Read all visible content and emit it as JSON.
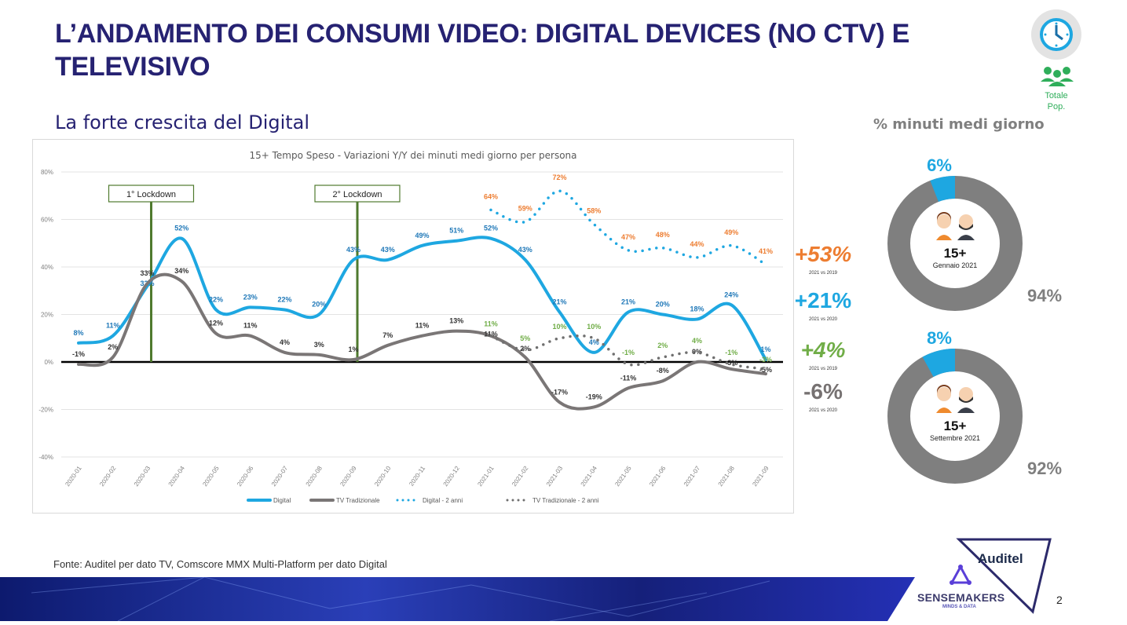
{
  "header": {
    "title": "L’ANDAMENTO DEI CONSUMI VIDEO: DIGITAL DEVICES (NO CTV) E TELEVISIVO",
    "subtitle": "La forte crescita del Digital",
    "population_icon": "people-group-icon",
    "clock_icon": "clock-icon",
    "population_label_1": "Totale",
    "population_label_2": "Pop."
  },
  "colors": {
    "digital": "#1ea7e1",
    "tv": "#7a7676",
    "digital_2y_label": "#ed7d31",
    "tv_2y_label": "#70ad47",
    "lockdown": "#4f7a2e",
    "title": "#262272"
  },
  "chart_data": {
    "type": "line",
    "title": "15+ Tempo Speso - Variazioni Y/Y dei minuti medi giorno per persona",
    "ylim": [
      -40,
      80
    ],
    "yticks": [
      "80%",
      "60%",
      "40%",
      "20%",
      "0%",
      "-20%",
      "-40%"
    ],
    "ytick_values": [
      80,
      60,
      40,
      20,
      0,
      -20,
      -40
    ],
    "grid": true,
    "legend_position": "bottom",
    "categories": [
      "2020-01",
      "2020-02",
      "2020-03",
      "2020-04",
      "2020-05",
      "2020-06",
      "2020-07",
      "2020-08",
      "2020-09",
      "2020-10",
      "2020-11",
      "2020-12",
      "2021-01",
      "2021-02",
      "2021-03",
      "2021-04",
      "2021-05",
      "2021-06",
      "2021-07",
      "2021-08",
      "2021-09"
    ],
    "series": [
      {
        "name": "Digital",
        "style": "solid",
        "values": [
          8,
          11,
          32,
          52,
          22,
          23,
          22,
          20,
          43,
          43,
          49,
          51,
          52,
          43,
          21,
          4,
          21,
          20,
          18,
          24,
          1
        ]
      },
      {
        "name": "TV Tradizionale",
        "style": "solid",
        "values": [
          -1,
          2,
          33,
          34,
          12,
          11,
          4,
          3,
          1,
          7,
          11,
          13,
          11,
          2,
          -17,
          -19,
          -11,
          -8,
          0,
          -3,
          -5
        ]
      },
      {
        "name": "Digital - 2 anni",
        "style": "dotted",
        "values": [
          null,
          null,
          null,
          null,
          null,
          null,
          null,
          null,
          null,
          null,
          null,
          null,
          64,
          59,
          72,
          58,
          47,
          48,
          44,
          49,
          41
        ]
      },
      {
        "name": "TV Tradizionale - 2 anni",
        "style": "dotted",
        "values": [
          null,
          null,
          null,
          null,
          null,
          null,
          null,
          null,
          null,
          null,
          null,
          null,
          11,
          5,
          10,
          10,
          -1,
          2,
          4,
          -1,
          -3
        ]
      }
    ],
    "annotations": [
      {
        "label": "1° Lockdown",
        "category": "2020-03"
      },
      {
        "label": "2° Lockdown",
        "category": "2020-09"
      }
    ],
    "summary": [
      {
        "value": "+53%",
        "note": "2021 vs 2019",
        "color": "#ed7d31"
      },
      {
        "value": "+21%",
        "note": "2021 vs 2020",
        "color": "#1ea7e1"
      },
      {
        "value": "+4%",
        "note": "2021 vs 2019",
        "color": "#70ad47"
      },
      {
        "value": "-6%",
        "note": "2021 vs 2020",
        "color": "#767171"
      }
    ]
  },
  "donuts": {
    "title": "% minuti medi giorno",
    "items": [
      {
        "digital": 6,
        "tv": 94,
        "digital_label": "6%",
        "tv_label": "94%",
        "age": "15+",
        "period": "Gennaio 2021"
      },
      {
        "digital": 8,
        "tv": 92,
        "digital_label": "8%",
        "tv_label": "92%",
        "age": "15+",
        "period": "Settembre 2021"
      }
    ]
  },
  "footer": {
    "source": "Fonte: Auditel per dato TV, Comscore MMX Multi-Platform per dato Digital",
    "logo_auditel": "Auditel",
    "logo_sensemakers": "SENSEMAKERS",
    "logo_tagline": "MINDS & DATA",
    "page_number": "2"
  }
}
